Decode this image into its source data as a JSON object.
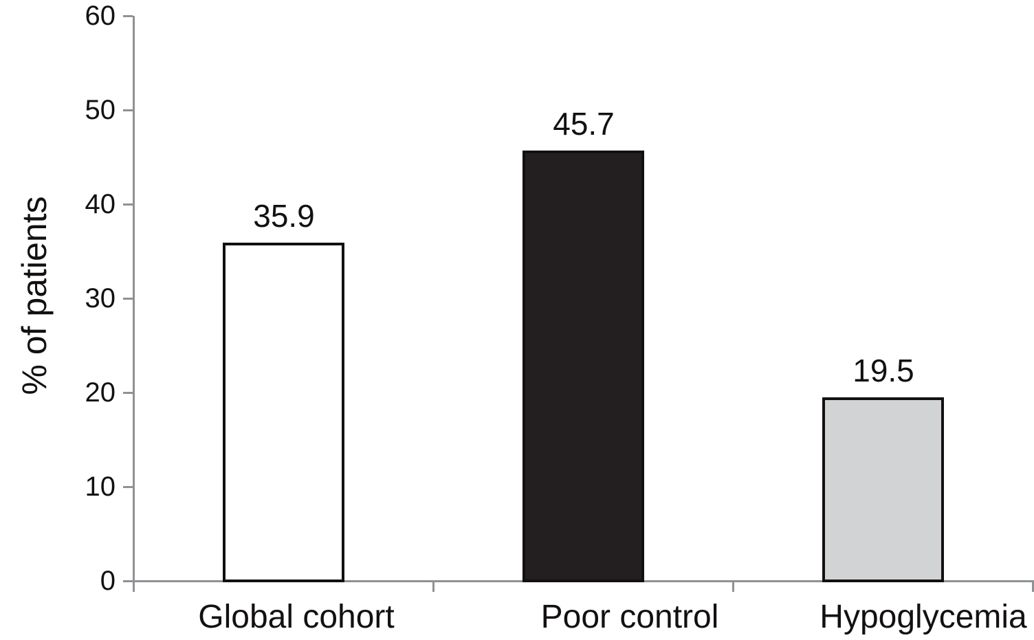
{
  "figure": {
    "background": "#ffffff"
  },
  "chart_data": {
    "type": "bar",
    "title": "",
    "xlabel": "",
    "ylabel": "% of patients",
    "categories": [
      "Global cohort",
      "Poor control",
      "Hypoglycemia"
    ],
    "values": [
      35.9,
      45.7,
      19.5
    ],
    "value_labels": [
      "35.9",
      "45.7",
      "19.5"
    ],
    "ylim": [
      0,
      60
    ],
    "yticks": [
      0,
      10,
      20,
      30,
      40,
      50,
      60
    ],
    "grid": false,
    "legend": "none",
    "bar_fill_colors": [
      "#ffffff",
      "#231f20",
      "#d1d3d4"
    ],
    "bar_border_color": "#131011",
    "axis_color": "#8f9194",
    "text_color": "#131011"
  }
}
